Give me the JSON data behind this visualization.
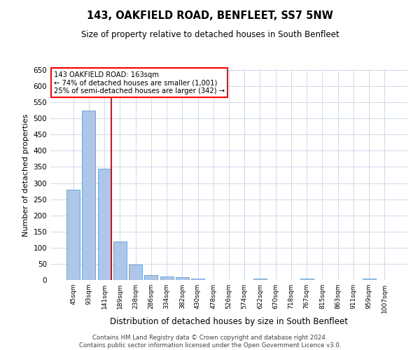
{
  "title": "143, OAKFIELD ROAD, BENFLEET, SS7 5NW",
  "subtitle": "Size of property relative to detached houses in South Benfleet",
  "xlabel": "Distribution of detached houses by size in South Benfleet",
  "ylabel": "Number of detached properties",
  "footer1": "Contains HM Land Registry data © Crown copyright and database right 2024.",
  "footer2": "Contains public sector information licensed under the Open Government Licence v3.0.",
  "categories": [
    "45sqm",
    "93sqm",
    "141sqm",
    "189sqm",
    "238sqm",
    "286sqm",
    "334sqm",
    "382sqm",
    "430sqm",
    "478sqm",
    "526sqm",
    "574sqm",
    "622sqm",
    "670sqm",
    "718sqm",
    "767sqm",
    "815sqm",
    "863sqm",
    "911sqm",
    "959sqm",
    "1007sqm"
  ],
  "values": [
    280,
    525,
    345,
    120,
    48,
    15,
    10,
    8,
    5,
    0,
    0,
    0,
    5,
    0,
    0,
    5,
    0,
    0,
    0,
    5,
    0
  ],
  "bar_color": "#aec6e8",
  "bar_edge_color": "#5a9fd4",
  "red_line_index": 2,
  "red_line_label": "143 OAKFIELD ROAD: 163sqm",
  "annotation_line1": "← 74% of detached houses are smaller (1,001)",
  "annotation_line2": "25% of semi-detached houses are larger (342) →",
  "ylim": [
    0,
    650
  ],
  "yticks": [
    0,
    50,
    100,
    150,
    200,
    250,
    300,
    350,
    400,
    450,
    500,
    550,
    600,
    650
  ],
  "background_color": "#ffffff",
  "grid_color": "#d0d8e8"
}
